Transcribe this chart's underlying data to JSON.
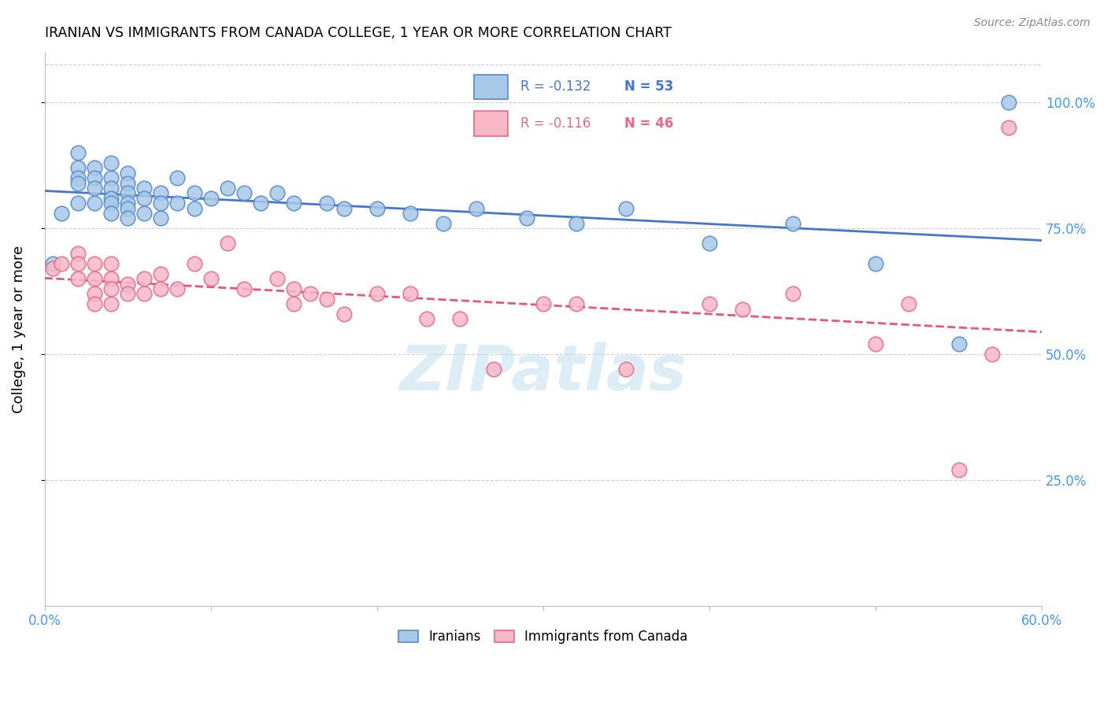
{
  "title": "IRANIAN VS IMMIGRANTS FROM CANADA COLLEGE, 1 YEAR OR MORE CORRELATION CHART",
  "source": "Source: ZipAtlas.com",
  "ylabel": "College, 1 year or more",
  "R1": -0.132,
  "N1": 53,
  "R2": -0.116,
  "N2": 46,
  "legend_label_1": "Iranians",
  "legend_label_2": "Immigrants from Canada",
  "xlim": [
    0.0,
    0.6
  ],
  "ylim": [
    0.0,
    1.1
  ],
  "yticks": [
    0.25,
    0.5,
    0.75,
    1.0
  ],
  "ytick_labels": [
    "25.0%",
    "50.0%",
    "75.0%",
    "100.0%"
  ],
  "xticks": [
    0.0,
    0.1,
    0.2,
    0.3,
    0.4,
    0.5,
    0.6
  ],
  "xtick_labels": [
    "0.0%",
    "",
    "",
    "",
    "",
    "",
    "60.0%"
  ],
  "color_blue": "#A8C8E8",
  "color_pink": "#F8B8C8",
  "color_edge_blue": "#5588CC",
  "color_edge_pink": "#E86888",
  "color_line_blue": "#4477CC",
  "color_line_pink": "#E8557A",
  "color_axis_text": "#4499EE",
  "watermark_text": "ZIPatlas",
  "iranians_x": [
    0.005,
    0.01,
    0.02,
    0.02,
    0.02,
    0.02,
    0.02,
    0.03,
    0.03,
    0.03,
    0.03,
    0.04,
    0.04,
    0.04,
    0.04,
    0.04,
    0.04,
    0.05,
    0.05,
    0.05,
    0.05,
    0.05,
    0.05,
    0.06,
    0.06,
    0.06,
    0.07,
    0.07,
    0.07,
    0.08,
    0.08,
    0.09,
    0.09,
    0.1,
    0.11,
    0.12,
    0.13,
    0.14,
    0.15,
    0.17,
    0.18,
    0.2,
    0.22,
    0.24,
    0.26,
    0.29,
    0.32,
    0.35,
    0.4,
    0.45,
    0.5,
    0.55,
    0.58
  ],
  "iranians_y": [
    0.68,
    0.78,
    0.9,
    0.87,
    0.85,
    0.84,
    0.8,
    0.87,
    0.85,
    0.83,
    0.8,
    0.88,
    0.85,
    0.83,
    0.81,
    0.8,
    0.78,
    0.86,
    0.84,
    0.82,
    0.8,
    0.79,
    0.77,
    0.83,
    0.81,
    0.78,
    0.82,
    0.8,
    0.77,
    0.85,
    0.8,
    0.82,
    0.79,
    0.81,
    0.83,
    0.82,
    0.8,
    0.82,
    0.8,
    0.8,
    0.79,
    0.79,
    0.78,
    0.76,
    0.79,
    0.77,
    0.76,
    0.79,
    0.72,
    0.76,
    0.68,
    0.52,
    1.0
  ],
  "canada_x": [
    0.005,
    0.01,
    0.02,
    0.02,
    0.02,
    0.03,
    0.03,
    0.03,
    0.03,
    0.04,
    0.04,
    0.04,
    0.04,
    0.05,
    0.05,
    0.06,
    0.06,
    0.07,
    0.07,
    0.08,
    0.09,
    0.1,
    0.11,
    0.12,
    0.14,
    0.15,
    0.15,
    0.16,
    0.17,
    0.18,
    0.2,
    0.22,
    0.23,
    0.25,
    0.27,
    0.3,
    0.32,
    0.35,
    0.4,
    0.42,
    0.45,
    0.5,
    0.52,
    0.55,
    0.57,
    0.58
  ],
  "canada_y": [
    0.67,
    0.68,
    0.7,
    0.68,
    0.65,
    0.68,
    0.65,
    0.62,
    0.6,
    0.68,
    0.65,
    0.63,
    0.6,
    0.64,
    0.62,
    0.65,
    0.62,
    0.66,
    0.63,
    0.63,
    0.68,
    0.65,
    0.72,
    0.63,
    0.65,
    0.63,
    0.6,
    0.62,
    0.61,
    0.58,
    0.62,
    0.62,
    0.57,
    0.57,
    0.47,
    0.6,
    0.6,
    0.47,
    0.6,
    0.59,
    0.62,
    0.52,
    0.6,
    0.27,
    0.5,
    0.95
  ]
}
